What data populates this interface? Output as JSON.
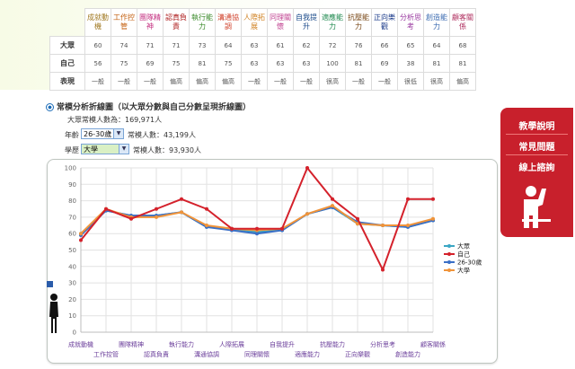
{
  "table": {
    "headers": [
      {
        "label": "成就動機",
        "color": "#a07820"
      },
      {
        "label": "工作控管",
        "color": "#c46010"
      },
      {
        "label": "團隊精神",
        "color": "#c43080"
      },
      {
        "label": "認真負責",
        "color": "#b02424"
      },
      {
        "label": "執行能力",
        "color": "#3a8a2a"
      },
      {
        "label": "溝通協調",
        "color": "#d0402a"
      },
      {
        "label": "人際拓展",
        "color": "#d08020"
      },
      {
        "label": "同理關懷",
        "color": "#c04090"
      },
      {
        "label": "自我提升",
        "color": "#1a4a8a"
      },
      {
        "label": "適應能力",
        "color": "#208a50"
      },
      {
        "label": "抗壓能力",
        "color": "#7a4a1a"
      },
      {
        "label": "正向樂觀",
        "color": "#1a3a8a"
      },
      {
        "label": "分析思考",
        "color": "#9a3aa0"
      },
      {
        "label": "創造能力",
        "color": "#3a6ab0"
      },
      {
        "label": "顧客關係",
        "color": "#b03060"
      }
    ],
    "rows": [
      {
        "label": "大眾",
        "values": [
          "60",
          "74",
          "71",
          "71",
          "73",
          "64",
          "63",
          "61",
          "62",
          "72",
          "76",
          "66",
          "65",
          "64",
          "68"
        ]
      },
      {
        "label": "自己",
        "values": [
          "56",
          "75",
          "69",
          "75",
          "81",
          "75",
          "63",
          "63",
          "63",
          "100",
          "81",
          "69",
          "38",
          "81",
          "81"
        ]
      },
      {
        "label": "表現",
        "values": [
          "一般",
          "一般",
          "一般",
          "偏高",
          "偏高",
          "偏高",
          "一般",
          "一般",
          "一般",
          "很高",
          "一般",
          "一般",
          "很低",
          "很高",
          "偏高"
        ]
      }
    ]
  },
  "section_title": "常模分析折線圖（以大眾分數與自己分數呈現折線圖）",
  "norm_public": "大眾常模人數為：169,971人",
  "age_label": "年齡",
  "age_value": "26-30歲",
  "age_norm": "常模人數：43,199人",
  "edu_label": "學歷",
  "edu_value": "大學",
  "edu_norm": "常模人數：93,930人",
  "side_menu": [
    "教學說明",
    "常見問題",
    "線上諮詢"
  ],
  "colors": {
    "public": "#3aa6c4",
    "self": "#d4212b",
    "age": "#3a6fc6",
    "edu": "#f0943a",
    "side": "#c8202c"
  },
  "icons": {
    "person": "person-icon",
    "raise_hand": "raise-hand-icon",
    "flag": "flag-icon",
    "dropdown": "chevron-down-icon",
    "radio": "radio-icon"
  },
  "chart_data": {
    "type": "line",
    "categories": [
      "成就動機",
      "工作控管",
      "團隊精神",
      "認真負責",
      "執行能力",
      "溝通協調",
      "人際拓展",
      "同理關懷",
      "自我提升",
      "適應能力",
      "抗壓能力",
      "正向樂觀",
      "分析思考",
      "創造能力",
      "顧客關係"
    ],
    "series": [
      {
        "name": "大眾",
        "values": [
          60,
          74,
          71,
          71,
          73,
          64,
          63,
          61,
          62,
          72,
          76,
          66,
          65,
          64,
          68
        ]
      },
      {
        "name": "自己",
        "values": [
          56,
          75,
          69,
          75,
          81,
          75,
          63,
          63,
          63,
          100,
          81,
          69,
          38,
          81,
          81
        ]
      },
      {
        "name": "26-30歲",
        "values": [
          59,
          74,
          71,
          71,
          73,
          64,
          62,
          60,
          62,
          72,
          76,
          67,
          65,
          64,
          68
        ]
      },
      {
        "name": "大學",
        "values": [
          60,
          75,
          70,
          70,
          73,
          65,
          63,
          62,
          63,
          72,
          77,
          66,
          65,
          65,
          69
        ]
      }
    ],
    "ylim": [
      0,
      100
    ],
    "yticks": [
      0,
      10,
      20,
      30,
      40,
      50,
      60,
      70,
      80,
      90,
      100
    ],
    "grid": true,
    "legend": "right"
  }
}
